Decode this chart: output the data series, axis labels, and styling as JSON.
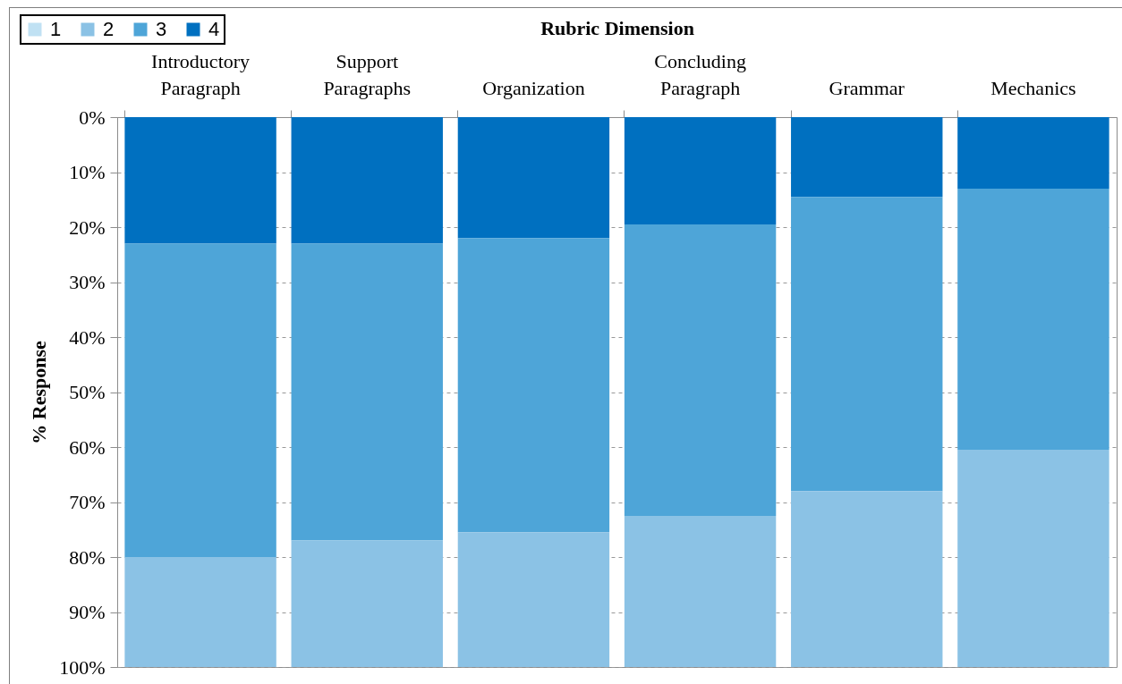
{
  "chart_data": {
    "type": "bar",
    "xlabel": "Rubric Dimension",
    "ylabel": "% Response",
    "categories": [
      "Introductory Paragraph",
      "Support Paragraphs",
      "Organization",
      "Concluding Paragraph",
      "Grammar",
      "Mechanics"
    ],
    "series": [
      {
        "name": "4",
        "color": "#0070c0",
        "values": [
          23,
          23,
          22,
          19.5,
          14.5,
          13
        ]
      },
      {
        "name": "3",
        "color": "#4ea5d8",
        "values": [
          57,
          54,
          53.5,
          53,
          53.5,
          47.5
        ]
      },
      {
        "name": "2",
        "color": "#8bc2e5",
        "values": [
          20,
          23,
          24.5,
          27.5,
          32,
          39.5
        ]
      },
      {
        "name": "1",
        "color": "#c0e1f3",
        "values": [
          null,
          null,
          null,
          null,
          null,
          null
        ]
      }
    ],
    "stacked": true,
    "ylim": [
      100,
      0
    ],
    "yticks": [
      {
        "value": 0,
        "label": "0%"
      },
      {
        "value": 10,
        "label": "10%"
      },
      {
        "value": 20,
        "label": "20%"
      },
      {
        "value": 30,
        "label": "30%"
      },
      {
        "value": 40,
        "label": "40%"
      },
      {
        "value": 50,
        "label": "50%"
      },
      {
        "value": 60,
        "label": "60%"
      },
      {
        "value": 70,
        "label": "70%"
      },
      {
        "value": 80,
        "label": "80%"
      },
      {
        "value": 90,
        "label": "90%"
      },
      {
        "value": 100,
        "label": "100%"
      }
    ],
    "grid": "y",
    "legend": "top left"
  }
}
